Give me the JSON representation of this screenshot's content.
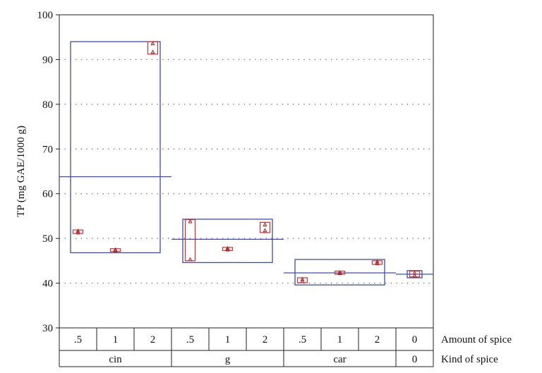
{
  "chart_data": {
    "type": "box",
    "ylabel": "TP (mg GAE/1000 g)",
    "ylim": [
      30,
      100
    ],
    "yticks": [
      30,
      40,
      50,
      60,
      70,
      80,
      90,
      100
    ],
    "grid": "horizontal dotted",
    "colors": {
      "group_box": "#3a4fb0",
      "cell_box": "#d03030",
      "point": "#b01818",
      "axis": "#222222"
    },
    "factor_rows": [
      {
        "name": "Amount of spice",
        "labels": [
          ".5",
          "1",
          "2",
          ".5",
          "1",
          "2",
          ".5",
          "1",
          "2",
          "0"
        ]
      },
      {
        "name": "Kind of spice",
        "groups": [
          {
            "label": "cin",
            "span": 3
          },
          {
            "label": "g",
            "span": 3
          },
          {
            "label": "car",
            "span": 3
          },
          {
            "label": "0",
            "span": 1
          }
        ]
      }
    ],
    "groups": [
      {
        "label": "cin",
        "mean": 63.8,
        "min": 46.8,
        "max": 94.0
      },
      {
        "label": "g",
        "mean": 49.8,
        "min": 44.6,
        "max": 54.3
      },
      {
        "label": "car",
        "mean": 42.3,
        "min": 39.6,
        "max": 45.3
      },
      {
        "label": "0",
        "mean": 42.0,
        "min": 41.2,
        "max": 42.8
      }
    ],
    "cells": [
      {
        "kind": "cin",
        "amount": ".5",
        "min": 51.1,
        "max": 51.9,
        "points": [
          51.3,
          51.7
        ]
      },
      {
        "kind": "cin",
        "amount": "1",
        "min": 47.1,
        "max": 47.7,
        "points": [
          47.3,
          47.5
        ]
      },
      {
        "kind": "cin",
        "amount": "2",
        "min": 91.2,
        "max": 94.0,
        "points": [
          91.7,
          93.6
        ]
      },
      {
        "kind": "g",
        "amount": ".5",
        "min": 45.0,
        "max": 54.2,
        "points": [
          45.3,
          53.8
        ]
      },
      {
        "kind": "g",
        "amount": "1",
        "min": 47.3,
        "max": 48.0,
        "points": [
          47.5,
          47.8
        ]
      },
      {
        "kind": "g",
        "amount": "2",
        "min": 51.3,
        "max": 53.6,
        "points": [
          51.8,
          53.1
        ]
      },
      {
        "kind": "car",
        "amount": ".5",
        "min": 40.1,
        "max": 41.2,
        "points": [
          40.4,
          40.9
        ]
      },
      {
        "kind": "car",
        "amount": "1",
        "min": 42.0,
        "max": 42.7,
        "points": [
          42.2,
          42.4
        ]
      },
      {
        "kind": "car",
        "amount": "2",
        "min": 44.2,
        "max": 45.0,
        "points": [
          44.4,
          44.8
        ]
      },
      {
        "kind": "0",
        "amount": "0",
        "min": 41.4,
        "max": 42.7,
        "points": [
          41.7,
          42.3
        ]
      }
    ]
  }
}
